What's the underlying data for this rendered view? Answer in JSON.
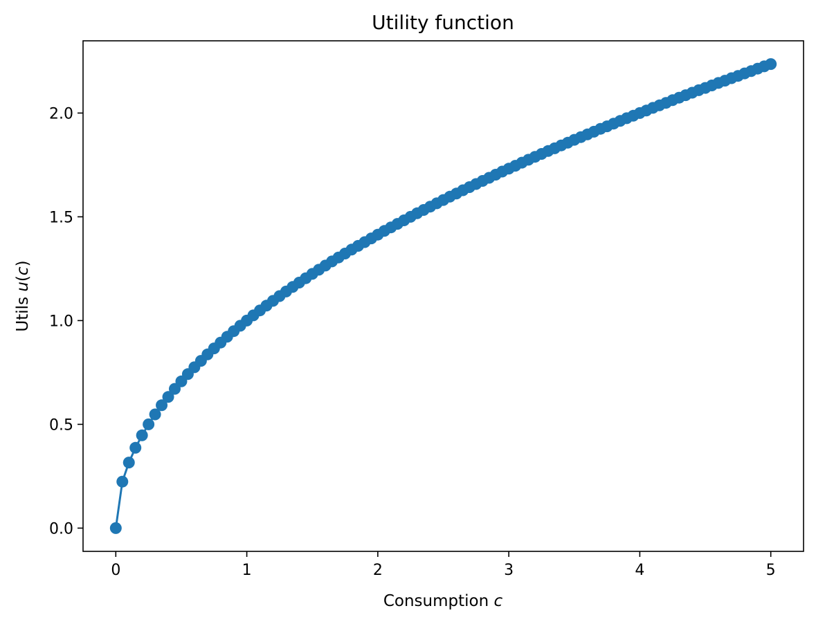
{
  "chart_data": {
    "type": "line",
    "title": "Utility function",
    "xlabel_text": "Consumption ",
    "xlabel_var": "c",
    "ylabel_text": "Utils ",
    "ylabel_var": "u",
    "ylabel_paren_open": "(",
    "ylabel_arg": "c",
    "ylabel_paren_close": ")",
    "xlim": [
      -0.25,
      5.25
    ],
    "ylim": [
      -0.112,
      2.348
    ],
    "xticks": [
      0,
      1,
      2,
      3,
      4,
      5
    ],
    "xtick_labels": [
      "0",
      "1",
      "2",
      "3",
      "4",
      "5"
    ],
    "yticks": [
      0.0,
      0.5,
      1.0,
      1.5,
      2.0
    ],
    "ytick_labels": [
      "0.0",
      "0.5",
      "1.0",
      "1.5",
      "2.0"
    ],
    "grid": false,
    "color": "#1f77b4",
    "marker": "circle",
    "series": [
      {
        "x": [
          0,
          0.05,
          0.1,
          0.15,
          0.2,
          0.25,
          0.3,
          0.35,
          0.4,
          0.45,
          0.5,
          0.55,
          0.6,
          0.65,
          0.7,
          0.75,
          0.8,
          0.85,
          0.9,
          0.95,
          1.0,
          1.05,
          1.1,
          1.15,
          1.2,
          1.25,
          1.3,
          1.35,
          1.4,
          1.45,
          1.5,
          1.55,
          1.6,
          1.65,
          1.7,
          1.75,
          1.8,
          1.85,
          1.9,
          1.95,
          2.0,
          2.05,
          2.1,
          2.15,
          2.2,
          2.25,
          2.3,
          2.35,
          2.4,
          2.45,
          2.5,
          2.55,
          2.6,
          2.65,
          2.7,
          2.75,
          2.8,
          2.85,
          2.9,
          2.95,
          3.0,
          3.05,
          3.1,
          3.15,
          3.2,
          3.25,
          3.3,
          3.35,
          3.4,
          3.45,
          3.5,
          3.55,
          3.6,
          3.65,
          3.7,
          3.75,
          3.8,
          3.85,
          3.9,
          3.95,
          4.0,
          4.05,
          4.1,
          4.15,
          4.2,
          4.25,
          4.3,
          4.35,
          4.4,
          4.45,
          4.5,
          4.55,
          4.6,
          4.65,
          4.7,
          4.75,
          4.8,
          4.85,
          4.9,
          4.95,
          5.0
        ],
        "y": [
          0.0,
          0.224,
          0.316,
          0.387,
          0.447,
          0.5,
          0.548,
          0.592,
          0.632,
          0.671,
          0.707,
          0.742,
          0.775,
          0.806,
          0.837,
          0.866,
          0.894,
          0.922,
          0.949,
          0.975,
          1.0,
          1.025,
          1.049,
          1.072,
          1.095,
          1.118,
          1.14,
          1.162,
          1.183,
          1.204,
          1.225,
          1.245,
          1.265,
          1.285,
          1.304,
          1.323,
          1.342,
          1.36,
          1.378,
          1.396,
          1.414,
          1.432,
          1.449,
          1.466,
          1.483,
          1.5,
          1.517,
          1.533,
          1.549,
          1.565,
          1.581,
          1.597,
          1.612,
          1.628,
          1.643,
          1.658,
          1.673,
          1.688,
          1.703,
          1.718,
          1.732,
          1.746,
          1.761,
          1.775,
          1.789,
          1.803,
          1.817,
          1.83,
          1.844,
          1.857,
          1.871,
          1.884,
          1.897,
          1.91,
          1.924,
          1.936,
          1.949,
          1.962,
          1.975,
          1.987,
          2.0,
          2.012,
          2.025,
          2.037,
          2.049,
          2.062,
          2.074,
          2.086,
          2.098,
          2.11,
          2.121,
          2.133,
          2.145,
          2.156,
          2.168,
          2.179,
          2.191,
          2.202,
          2.214,
          2.225,
          2.236
        ]
      }
    ]
  }
}
